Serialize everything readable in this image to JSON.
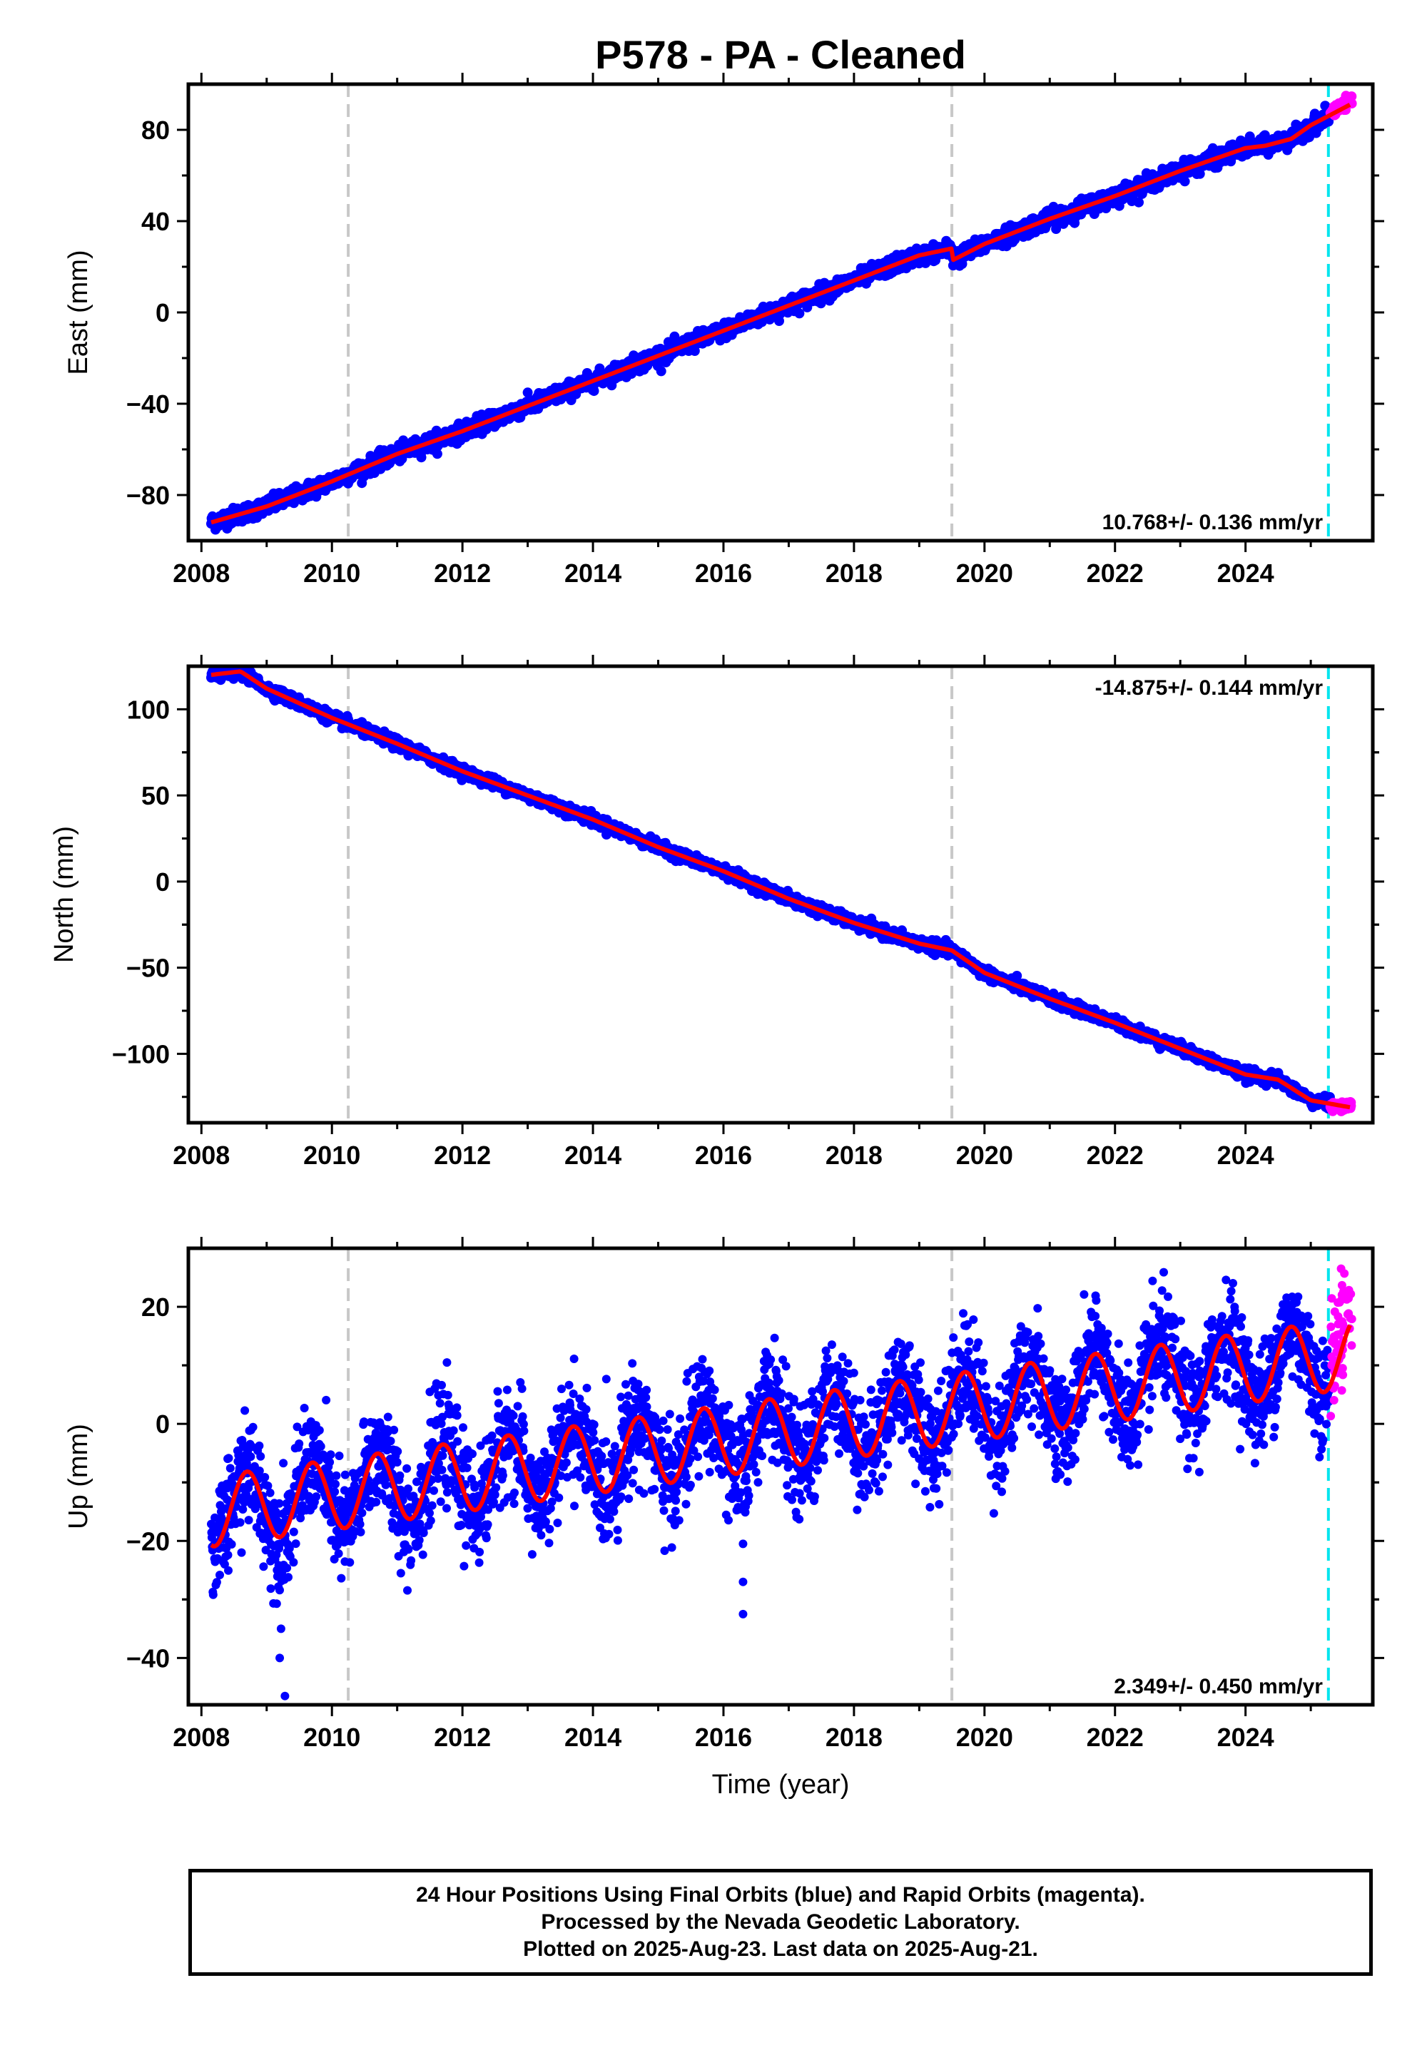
{
  "title": "P578  - PA - Cleaned",
  "footer": {
    "line1": "24 Hour Positions Using Final Orbits (blue) and Rapid Orbits (magenta).",
    "line2": "Processed by the Nevada Geodetic Laboratory.",
    "line3": "Plotted on 2025-Aug-23. Last data on 2025-Aug-21."
  },
  "colors": {
    "final_orbits": "#0000ff",
    "rapid_orbits": "#ff00ff",
    "model_fit": "#ff0000",
    "equipment_change": "#c8c8c8",
    "rapid_start": "#00e5ee"
  },
  "chart_data": [
    {
      "type": "scatter",
      "ylabel": "East (mm)",
      "xlabel": "",
      "xlim": [
        2007.8,
        2025.95
      ],
      "ylim": [
        -100,
        100
      ],
      "xticks": [
        2008,
        2010,
        2012,
        2014,
        2016,
        2018,
        2020,
        2022,
        2024
      ],
      "yticks": [
        -80,
        -40,
        0,
        40,
        80
      ],
      "rate_label": "10.768+/- 0.136 mm/yr",
      "rate_position": "bottom-right",
      "vertical_lines": [
        {
          "x": 2010.25,
          "kind": "equipment-change"
        },
        {
          "x": 2019.5,
          "kind": "equipment-change"
        },
        {
          "x": 2025.27,
          "kind": "rapid-orbit-start"
        }
      ],
      "series": [
        {
          "name": "Final Orbits",
          "role": "final",
          "x_range": [
            2008.15,
            2025.3
          ],
          "y_start": -91.5,
          "y_end": 85.5,
          "annual_amplitude": 1.6,
          "scatter": 1.8
        },
        {
          "name": "Rapid Orbits",
          "role": "rapid",
          "x_range": [
            2025.3,
            2025.63
          ],
          "y_start": 87,
          "y_end": 93,
          "scatter": 1.2
        },
        {
          "name": "Model",
          "role": "fit",
          "x": [
            2008.15,
            2009.0,
            2010.0,
            2011.0,
            2012.0,
            2013.0,
            2014.0,
            2015.0,
            2016.0,
            2017.0,
            2018.0,
            2019.0,
            2019.5,
            2019.52,
            2020.0,
            2021.0,
            2022.0,
            2023.0,
            2024.0,
            2024.3,
            2024.7,
            2025.0,
            2025.6
          ],
          "y": [
            -92,
            -85,
            -74,
            -62,
            -52,
            -41,
            -30,
            -19,
            -8,
            3,
            14,
            25,
            28,
            23,
            30,
            41,
            51,
            62,
            72,
            73,
            76,
            82,
            91
          ]
        }
      ]
    },
    {
      "type": "scatter",
      "ylabel": "North (mm)",
      "xlabel": "",
      "xlim": [
        2007.8,
        2025.95
      ],
      "ylim": [
        -140,
        125
      ],
      "xticks": [
        2008,
        2010,
        2012,
        2014,
        2016,
        2018,
        2020,
        2022,
        2024
      ],
      "yticks": [
        -100,
        -50,
        0,
        50,
        100
      ],
      "rate_label": "-14.875+/- 0.144 mm/yr",
      "rate_position": "top-right",
      "vertical_lines": [
        {
          "x": 2010.25,
          "kind": "equipment-change"
        },
        {
          "x": 2019.5,
          "kind": "equipment-change"
        },
        {
          "x": 2025.27,
          "kind": "rapid-orbit-start"
        }
      ],
      "series": [
        {
          "name": "Final Orbits",
          "role": "final",
          "x_range": [
            2008.15,
            2025.3
          ],
          "y_start": 120,
          "y_end": -132,
          "annual_amplitude": 2.2,
          "scatter": 1.6
        },
        {
          "name": "Rapid Orbits",
          "role": "rapid",
          "x_range": [
            2025.3,
            2025.63
          ],
          "y_start": -131,
          "y_end": -130,
          "scatter": 1.2
        },
        {
          "name": "Model",
          "role": "fit",
          "x": [
            2008.15,
            2008.6,
            2009.0,
            2010.0,
            2011.0,
            2012.0,
            2013.0,
            2014.0,
            2015.0,
            2016.0,
            2017.0,
            2018.0,
            2019.0,
            2019.5,
            2020.0,
            2021.0,
            2022.0,
            2023.0,
            2024.0,
            2024.5,
            2025.0,
            2025.6
          ],
          "y": [
            120,
            122,
            112,
            95,
            80,
            64,
            50,
            36,
            20,
            6,
            -10,
            -24,
            -36,
            -40,
            -53,
            -68,
            -82,
            -97,
            -112,
            -115,
            -127,
            -131
          ]
        }
      ]
    },
    {
      "type": "scatter",
      "ylabel": "Up (mm)",
      "xlabel": "Time (year)",
      "xlim": [
        2007.8,
        2025.95
      ],
      "ylim": [
        -48,
        30
      ],
      "xticks": [
        2008,
        2010,
        2012,
        2014,
        2016,
        2018,
        2020,
        2022,
        2024
      ],
      "yticks": [
        -40,
        -20,
        0,
        20
      ],
      "rate_label": "2.349+/- 0.450 mm/yr",
      "rate_position": "bottom-right",
      "vertical_lines": [
        {
          "x": 2010.25,
          "kind": "equipment-change"
        },
        {
          "x": 2019.5,
          "kind": "equipment-change"
        },
        {
          "x": 2025.27,
          "kind": "rapid-orbit-start"
        }
      ],
      "series": [
        {
          "name": "Final Orbits",
          "role": "final",
          "x_range": [
            2008.15,
            2025.3
          ],
          "y_start": -15,
          "y_end": 12,
          "annual_amplitude": 6,
          "scatter": 4.5
        },
        {
          "name": "Rapid Orbits",
          "role": "rapid",
          "x_range": [
            2025.3,
            2025.63
          ],
          "y_start": 12,
          "y_end": 20,
          "scatter": 5
        },
        {
          "name": "Model",
          "role": "fit",
          "trend_start": -15,
          "trend_end": 12,
          "annual_amplitude": 6,
          "x_range": [
            2008.15,
            2025.6
          ]
        }
      ],
      "outliers": [
        {
          "x": 2009.2,
          "y": -40
        },
        {
          "x": 2009.28,
          "y": -46.5
        },
        {
          "x": 2009.22,
          "y": -35
        },
        {
          "x": 2016.3,
          "y": -20.5
        },
        {
          "x": 2016.3,
          "y": -27
        },
        {
          "x": 2016.3,
          "y": -32.5
        }
      ]
    }
  ]
}
